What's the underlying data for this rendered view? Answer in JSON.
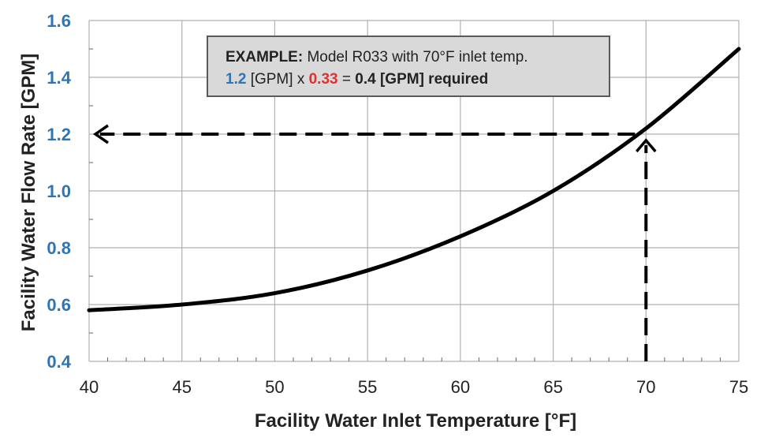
{
  "chart_data": {
    "type": "line",
    "title": "",
    "xlabel": "Facility Water Inlet Temperature [°F]",
    "ylabel": "Facility Water Flow Rate [GPM]",
    "xlim": [
      40,
      75
    ],
    "ylim": [
      0.4,
      1.6
    ],
    "xticks": [
      "40",
      "45",
      "50",
      "55",
      "60",
      "65",
      "70",
      "75"
    ],
    "yticks": [
      "0.4",
      "0.6",
      "0.8",
      "1.0",
      "1.2",
      "1.4",
      "1.6"
    ],
    "grid": true,
    "series": [
      {
        "x": [
          40,
          45,
          50,
          55,
          60,
          65,
          70,
          75
        ],
        "y": [
          0.58,
          0.6,
          0.64,
          0.72,
          0.84,
          1.0,
          1.22,
          1.5
        ]
      }
    ],
    "annotation": {
      "example_label": "EXAMPLE:",
      "example_text": "Model R033 with 70°F inlet temp.",
      "flow_value": "1.2",
      "flow_unit": "[GPM] x",
      "factor": "0.33",
      "equals": "=",
      "result": "0.4 [GPM] required",
      "guide_x": 70,
      "guide_y": 1.2
    },
    "colors": {
      "ytick": "#2e75b6",
      "flow_value": "#2e75b6",
      "factor": "#e03030",
      "curve": "#000000",
      "grid": "#b0b0b0",
      "box_fill": "#d9d9d9"
    }
  }
}
